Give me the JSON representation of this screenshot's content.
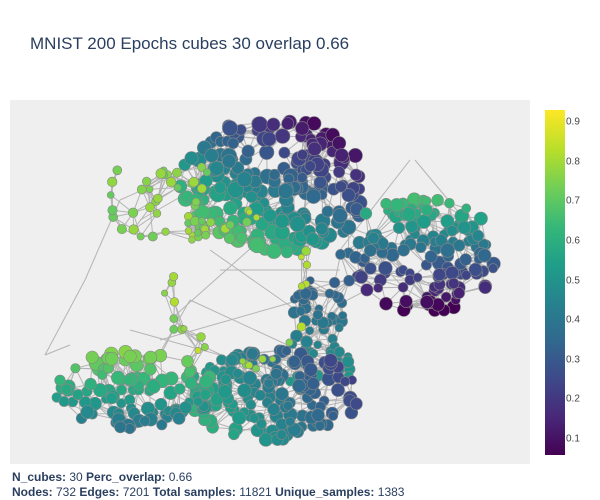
{
  "title": "MNIST 200 Epochs cubes 30 overlap 0.66",
  "stats": {
    "line1": [
      {
        "label": "N_cubes:",
        "value": "30"
      },
      {
        "label": "Perc_overlap:",
        "value": "0.66"
      }
    ],
    "line2": [
      {
        "label": "Nodes:",
        "value": "732"
      },
      {
        "label": "Edges:",
        "value": "7201"
      },
      {
        "label": "Total samples:",
        "value": "11821"
      },
      {
        "label": "Unique_samples:",
        "value": "1383"
      }
    ]
  },
  "chart_data": {
    "type": "scatter",
    "title": "MNIST 200 Epochs cubes 30 overlap 0.66",
    "colorscale": "viridis",
    "colorbar": {
      "range": [
        0.06,
        0.93
      ],
      "ticks": [
        "0.1",
        "0.2",
        "0.3",
        "0.4",
        "0.5",
        "0.6",
        "0.7",
        "0.8",
        "0.9"
      ],
      "tick_values": [
        0.1,
        0.2,
        0.3,
        0.4,
        0.5,
        0.6,
        0.7,
        0.8,
        0.9
      ]
    },
    "edge_color": "#b4b4b4",
    "node_outline": "#888888",
    "grid": false,
    "legend": "none"
  }
}
